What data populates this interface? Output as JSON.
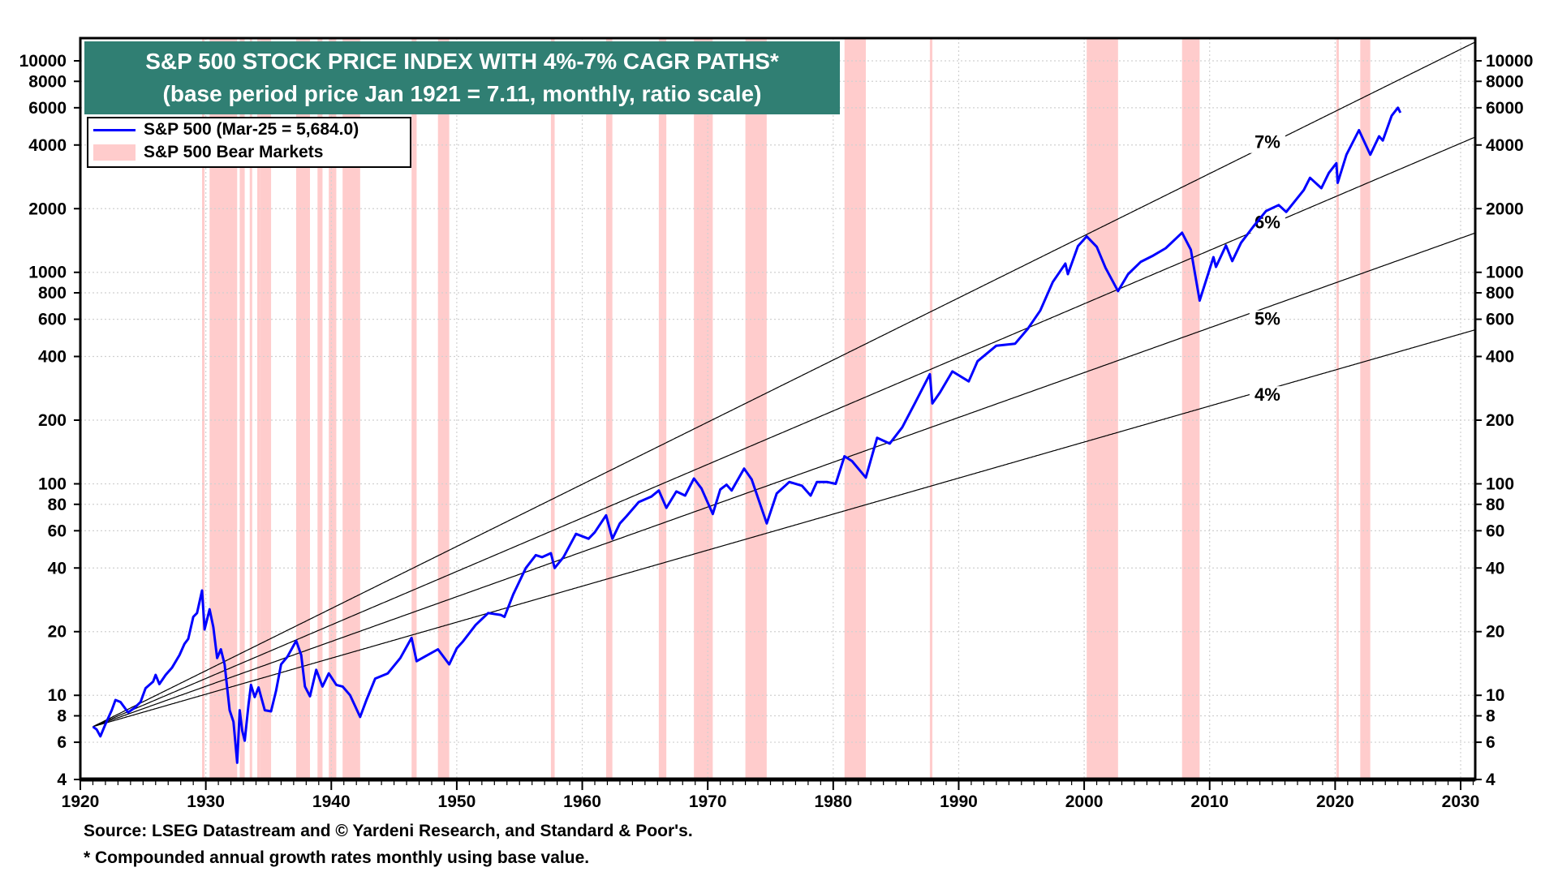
{
  "chart_data": {
    "type": "line",
    "title": "S&P 500 STOCK PRICE INDEX WITH 4%-7% CAGR PATHS*",
    "subtitle": "(base period price Jan 1921 = 7.11, monthly, ratio scale)",
    "y_scale": "log",
    "ylim": [
      4,
      12800
    ],
    "xlim": [
      1920,
      2031.2
    ],
    "grid": true,
    "legend_placement": "top-left",
    "legend": [
      "S&P 500 (Mar-25 = 5,684.0)",
      "S&P 500 Bear Markets"
    ],
    "y_ticks": [
      4,
      6,
      8,
      10,
      20,
      40,
      60,
      80,
      100,
      200,
      400,
      600,
      800,
      1000,
      2000,
      4000,
      6000,
      8000,
      10000
    ],
    "x_ticks": [
      1920,
      1930,
      1940,
      1950,
      1960,
      1970,
      1980,
      1990,
      2000,
      2010,
      2020,
      2030
    ],
    "base": {
      "year": 1921.0,
      "value": 7.11
    },
    "cagr_paths": [
      {
        "label": "7%",
        "rate": 0.07
      },
      {
        "label": "6%",
        "rate": 0.06
      },
      {
        "label": "5%",
        "rate": 0.05
      },
      {
        "label": "4%",
        "rate": 0.04
      }
    ],
    "series": [
      {
        "name": "S&P 500",
        "color": "#0000ff",
        "points": [
          [
            1921.0,
            7.11
          ],
          [
            1921.3,
            6.9
          ],
          [
            1921.6,
            6.4
          ],
          [
            1922.0,
            7.3
          ],
          [
            1922.5,
            8.5
          ],
          [
            1922.8,
            9.5
          ],
          [
            1923.2,
            9.3
          ],
          [
            1923.8,
            8.3
          ],
          [
            1924.3,
            8.7
          ],
          [
            1924.8,
            9.3
          ],
          [
            1925.2,
            10.8
          ],
          [
            1925.8,
            11.6
          ],
          [
            1926.0,
            12.5
          ],
          [
            1926.3,
            11.3
          ],
          [
            1926.8,
            12.5
          ],
          [
            1927.3,
            13.5
          ],
          [
            1927.9,
            15.5
          ],
          [
            1928.3,
            17.5
          ],
          [
            1928.6,
            18.5
          ],
          [
            1929.0,
            23.5
          ],
          [
            1929.3,
            24.5
          ],
          [
            1929.7,
            31.3
          ],
          [
            1929.9,
            20.5
          ],
          [
            1930.3,
            25.5
          ],
          [
            1930.6,
            21
          ],
          [
            1930.9,
            15
          ],
          [
            1931.2,
            16.5
          ],
          [
            1931.5,
            14
          ],
          [
            1931.9,
            8.5
          ],
          [
            1932.2,
            7.5
          ],
          [
            1932.5,
            4.8
          ],
          [
            1932.7,
            8.5
          ],
          [
            1932.9,
            6.8
          ],
          [
            1933.1,
            6.1
          ],
          [
            1933.4,
            9
          ],
          [
            1933.6,
            11.2
          ],
          [
            1933.9,
            9.8
          ],
          [
            1934.2,
            10.9
          ],
          [
            1934.7,
            8.5
          ],
          [
            1935.2,
            8.4
          ],
          [
            1935.6,
            10.5
          ],
          [
            1936.0,
            14
          ],
          [
            1936.5,
            15.2
          ],
          [
            1937.2,
            18.1
          ],
          [
            1937.6,
            15.5
          ],
          [
            1937.9,
            11
          ],
          [
            1938.3,
            9.9
          ],
          [
            1938.8,
            13.2
          ],
          [
            1939.3,
            11
          ],
          [
            1939.8,
            12.7
          ],
          [
            1940.4,
            11.2
          ],
          [
            1940.9,
            11
          ],
          [
            1941.5,
            10
          ],
          [
            1942.3,
            7.9
          ],
          [
            1942.8,
            9.5
          ],
          [
            1943.5,
            12
          ],
          [
            1944.5,
            12.7
          ],
          [
            1945.5,
            15
          ],
          [
            1946.4,
            18.7
          ],
          [
            1946.8,
            14.5
          ],
          [
            1947.5,
            15.3
          ],
          [
            1948.5,
            16.5
          ],
          [
            1949.4,
            14
          ],
          [
            1950.0,
            16.7
          ],
          [
            1950.5,
            18
          ],
          [
            1951.5,
            21.5
          ],
          [
            1952.5,
            24.5
          ],
          [
            1953.5,
            24
          ],
          [
            1953.8,
            23.5
          ],
          [
            1954.5,
            30
          ],
          [
            1955.5,
            40
          ],
          [
            1956.3,
            46
          ],
          [
            1956.8,
            45
          ],
          [
            1957.5,
            47
          ],
          [
            1957.8,
            40
          ],
          [
            1958.5,
            45
          ],
          [
            1959.5,
            58
          ],
          [
            1960.5,
            55
          ],
          [
            1961.0,
            59
          ],
          [
            1961.9,
            71
          ],
          [
            1962.4,
            55
          ],
          [
            1963.0,
            65
          ],
          [
            1963.5,
            70
          ],
          [
            1964.5,
            82
          ],
          [
            1965.5,
            87
          ],
          [
            1966.1,
            93
          ],
          [
            1966.7,
            77
          ],
          [
            1967.5,
            92
          ],
          [
            1968.2,
            88
          ],
          [
            1968.9,
            106
          ],
          [
            1969.5,
            95
          ],
          [
            1970.4,
            72
          ],
          [
            1971.0,
            94
          ],
          [
            1971.5,
            99
          ],
          [
            1971.9,
            93
          ],
          [
            1972.9,
            118
          ],
          [
            1973.5,
            105
          ],
          [
            1974.7,
            65
          ],
          [
            1975.5,
            90
          ],
          [
            1976.5,
            102
          ],
          [
            1977.5,
            98
          ],
          [
            1978.2,
            88
          ],
          [
            1978.7,
            102
          ],
          [
            1979.5,
            102
          ],
          [
            1980.2,
            100
          ],
          [
            1980.9,
            135
          ],
          [
            1981.5,
            128
          ],
          [
            1982.6,
            107
          ],
          [
            1983.5,
            165
          ],
          [
            1984.5,
            155
          ],
          [
            1985.5,
            185
          ],
          [
            1986.5,
            240
          ],
          [
            1987.7,
            330
          ],
          [
            1987.9,
            240
          ],
          [
            1988.5,
            270
          ],
          [
            1989.5,
            340
          ],
          [
            1990.8,
            305
          ],
          [
            1991.5,
            380
          ],
          [
            1993.0,
            450
          ],
          [
            1994.5,
            460
          ],
          [
            1995.5,
            540
          ],
          [
            1996.5,
            660
          ],
          [
            1997.5,
            900
          ],
          [
            1998.5,
            1100
          ],
          [
            1998.7,
            980
          ],
          [
            1999.5,
            1330
          ],
          [
            2000.2,
            1480
          ],
          [
            2001.0,
            1320
          ],
          [
            2001.7,
            1050
          ],
          [
            2002.7,
            815
          ],
          [
            2003.5,
            980
          ],
          [
            2004.5,
            1120
          ],
          [
            2005.5,
            1200
          ],
          [
            2006.5,
            1300
          ],
          [
            2007.8,
            1540
          ],
          [
            2008.5,
            1280
          ],
          [
            2009.2,
            735
          ],
          [
            2010.3,
            1180
          ],
          [
            2010.5,
            1060
          ],
          [
            2011.3,
            1340
          ],
          [
            2011.8,
            1130
          ],
          [
            2012.5,
            1380
          ],
          [
            2013.5,
            1650
          ],
          [
            2014.5,
            1950
          ],
          [
            2015.5,
            2080
          ],
          [
            2016.1,
            1930
          ],
          [
            2017.5,
            2450
          ],
          [
            2018.0,
            2800
          ],
          [
            2018.9,
            2500
          ],
          [
            2019.5,
            2950
          ],
          [
            2020.1,
            3280
          ],
          [
            2020.2,
            2650
          ],
          [
            2020.9,
            3600
          ],
          [
            2021.9,
            4700
          ],
          [
            2022.8,
            3600
          ],
          [
            2023.5,
            4400
          ],
          [
            2023.8,
            4200
          ],
          [
            2024.5,
            5500
          ],
          [
            2025.0,
            6000
          ],
          [
            2025.2,
            5684
          ]
        ]
      }
    ],
    "bear_markets": [
      [
        1929.7,
        1929.9
      ],
      [
        1930.3,
        1932.5
      ],
      [
        1932.7,
        1933.1
      ],
      [
        1933.5,
        1933.6
      ],
      [
        1934.1,
        1934.2
      ],
      [
        1934.3,
        1935.2
      ],
      [
        1937.2,
        1938.3
      ],
      [
        1938.9,
        1939.3
      ],
      [
        1939.8,
        1940.4
      ],
      [
        1940.9,
        1942.3
      ],
      [
        1946.4,
        1946.8
      ],
      [
        1948.5,
        1949.4
      ],
      [
        1957.5,
        1957.8
      ],
      [
        1961.9,
        1962.4
      ],
      [
        1966.1,
        1966.7
      ],
      [
        1968.9,
        1970.4
      ],
      [
        1973.0,
        1974.7
      ],
      [
        1980.9,
        1982.6
      ],
      [
        1987.7,
        1987.9
      ],
      [
        2000.2,
        2002.7
      ],
      [
        2007.8,
        2009.2
      ],
      [
        2020.1,
        2020.2
      ],
      [
        2022.0,
        2022.8
      ]
    ],
    "colors": {
      "series": "#0000ff",
      "bear": "#ffcccc",
      "cagr": "#000000",
      "title_bg": "#307f73"
    }
  },
  "footer": {
    "source": "Source: LSEG Datastream and © Yardeni Research, and Standard & Poor's.",
    "note": "* Compounded annual growth rates monthly using base value."
  }
}
